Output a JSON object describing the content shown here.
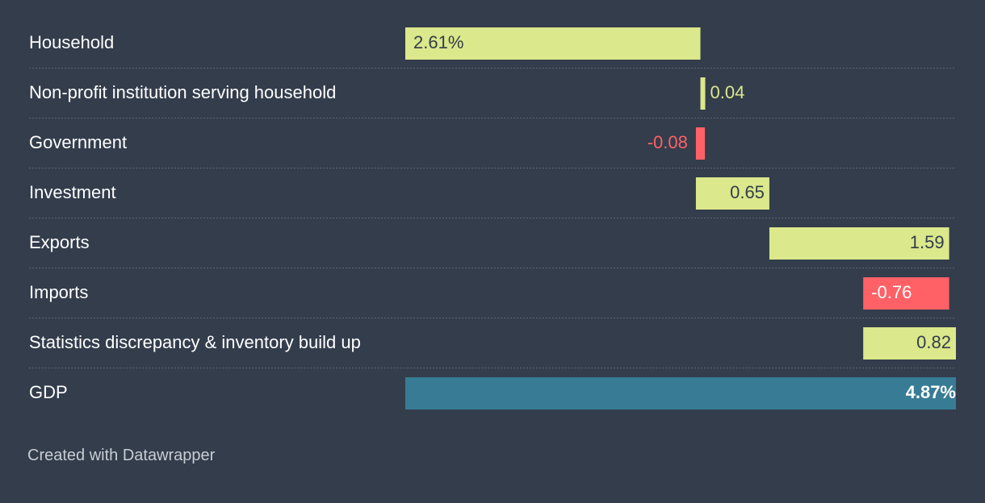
{
  "chart_data": {
    "type": "bar",
    "subtype": "waterfall",
    "categories": [
      "Household",
      "Non-profit institution serving household",
      "Government",
      "Investment",
      "Exports",
      "Imports",
      "Statistics discrepancy & inventory build up",
      "GDP"
    ],
    "values": [
      2.61,
      0.04,
      -0.08,
      0.65,
      1.59,
      -0.76,
      0.82,
      4.87
    ],
    "value_labels": [
      "2.61%",
      "0.04",
      "-0.08",
      "0.65",
      "1.59",
      "-0.76",
      "0.82",
      "4.87%"
    ],
    "total_index": 7,
    "xlim": [
      0,
      4.87
    ],
    "grid": false,
    "legend": "none",
    "colors": {
      "positive": "#dbe88b",
      "negative": "#ff6167",
      "total": "#387b94",
      "dark_text": "#333d4c",
      "white_text": "#ffffff"
    }
  },
  "footer": {
    "credit": "Created with Datawrapper"
  }
}
